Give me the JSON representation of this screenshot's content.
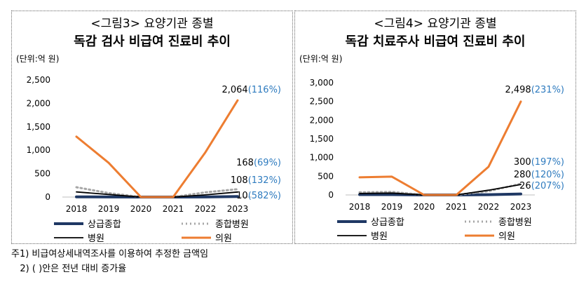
{
  "chart_data": [
    {
      "type": "line",
      "title_line1": "<그림3> 요양기관 종별",
      "title_line2": "독감 검사 비급여 진료비 추이",
      "unit": "(단위:억 원)",
      "categories": [
        "2018",
        "2019",
        "2020",
        "2021",
        "2022",
        "2023"
      ],
      "ylim": [
        0,
        2500
      ],
      "yticks": [
        "0",
        "500",
        "1,000",
        "1,500",
        "2,000",
        "2,500"
      ],
      "grid": false,
      "legend_placement": "bottom",
      "series": [
        {
          "name": "상급종합",
          "color": "#1f3864",
          "style": "solid-thick",
          "values": [
            5,
            2,
            0,
            0,
            2,
            10
          ]
        },
        {
          "name": "종합병원",
          "color": "#a6a6a6",
          "style": "dotted",
          "values": [
            210,
            85,
            0,
            0,
            100,
            168
          ]
        },
        {
          "name": "병원",
          "color": "#000000",
          "style": "solid-thin",
          "values": [
            110,
            55,
            0,
            0,
            47,
            108
          ]
        },
        {
          "name": "의원",
          "color": "#ed7d31",
          "style": "solid",
          "values": [
            1290,
            730,
            0,
            0,
            955,
            2064
          ]
        }
      ],
      "annotations": [
        {
          "series": "의원",
          "value": "2,064",
          "pct": "(116%)"
        },
        {
          "series": "종합병원",
          "value": "168",
          "pct": "(69%)"
        },
        {
          "series": "병원",
          "value": "108",
          "pct": "(132%)"
        },
        {
          "series": "상급종합",
          "value": "10",
          "pct": "(582%)"
        }
      ]
    },
    {
      "type": "line",
      "title_line1": "<그림4> 요양기관 종별",
      "title_line2": "독감 치료주사 비급여 진료비 추이",
      "unit": "(단위:억 원)",
      "categories": [
        "2018",
        "2019",
        "2020",
        "2021",
        "2022",
        "2023"
      ],
      "ylim": [
        0,
        3000
      ],
      "yticks": [
        "0",
        "500",
        "1,000",
        "1,500",
        "2,000",
        "2,500",
        "3,000"
      ],
      "grid": false,
      "legend_placement": "bottom",
      "series": [
        {
          "name": "상급종합",
          "color": "#1f3864",
          "style": "solid-thick",
          "values": [
            10,
            9,
            0,
            0,
            8,
            26
          ]
        },
        {
          "name": "종합병원",
          "color": "#a6a6a6",
          "style": "dotted",
          "values": [
            70,
            80,
            0,
            0,
            101,
            300
          ]
        },
        {
          "name": "병원",
          "color": "#000000",
          "style": "solid-thin",
          "values": [
            40,
            50,
            0,
            0,
            127,
            280
          ]
        },
        {
          "name": "의원",
          "color": "#ed7d31",
          "style": "solid",
          "values": [
            470,
            490,
            0,
            0,
            755,
            2498
          ]
        }
      ],
      "annotations": [
        {
          "series": "의원",
          "value": "2,498",
          "pct": "(231%)"
        },
        {
          "series": "종합병원",
          "value": "300",
          "pct": "(197%)"
        },
        {
          "series": "병원",
          "value": "280",
          "pct": "(120%)"
        },
        {
          "series": "상급종합",
          "value": "26",
          "pct": "(207%)"
        }
      ]
    }
  ],
  "notes": {
    "note1": "주1) 비급여상세내역조사를 이용하여 추정한 금액임",
    "note2": "   2) ( )안은 전년 대비 증가율"
  }
}
